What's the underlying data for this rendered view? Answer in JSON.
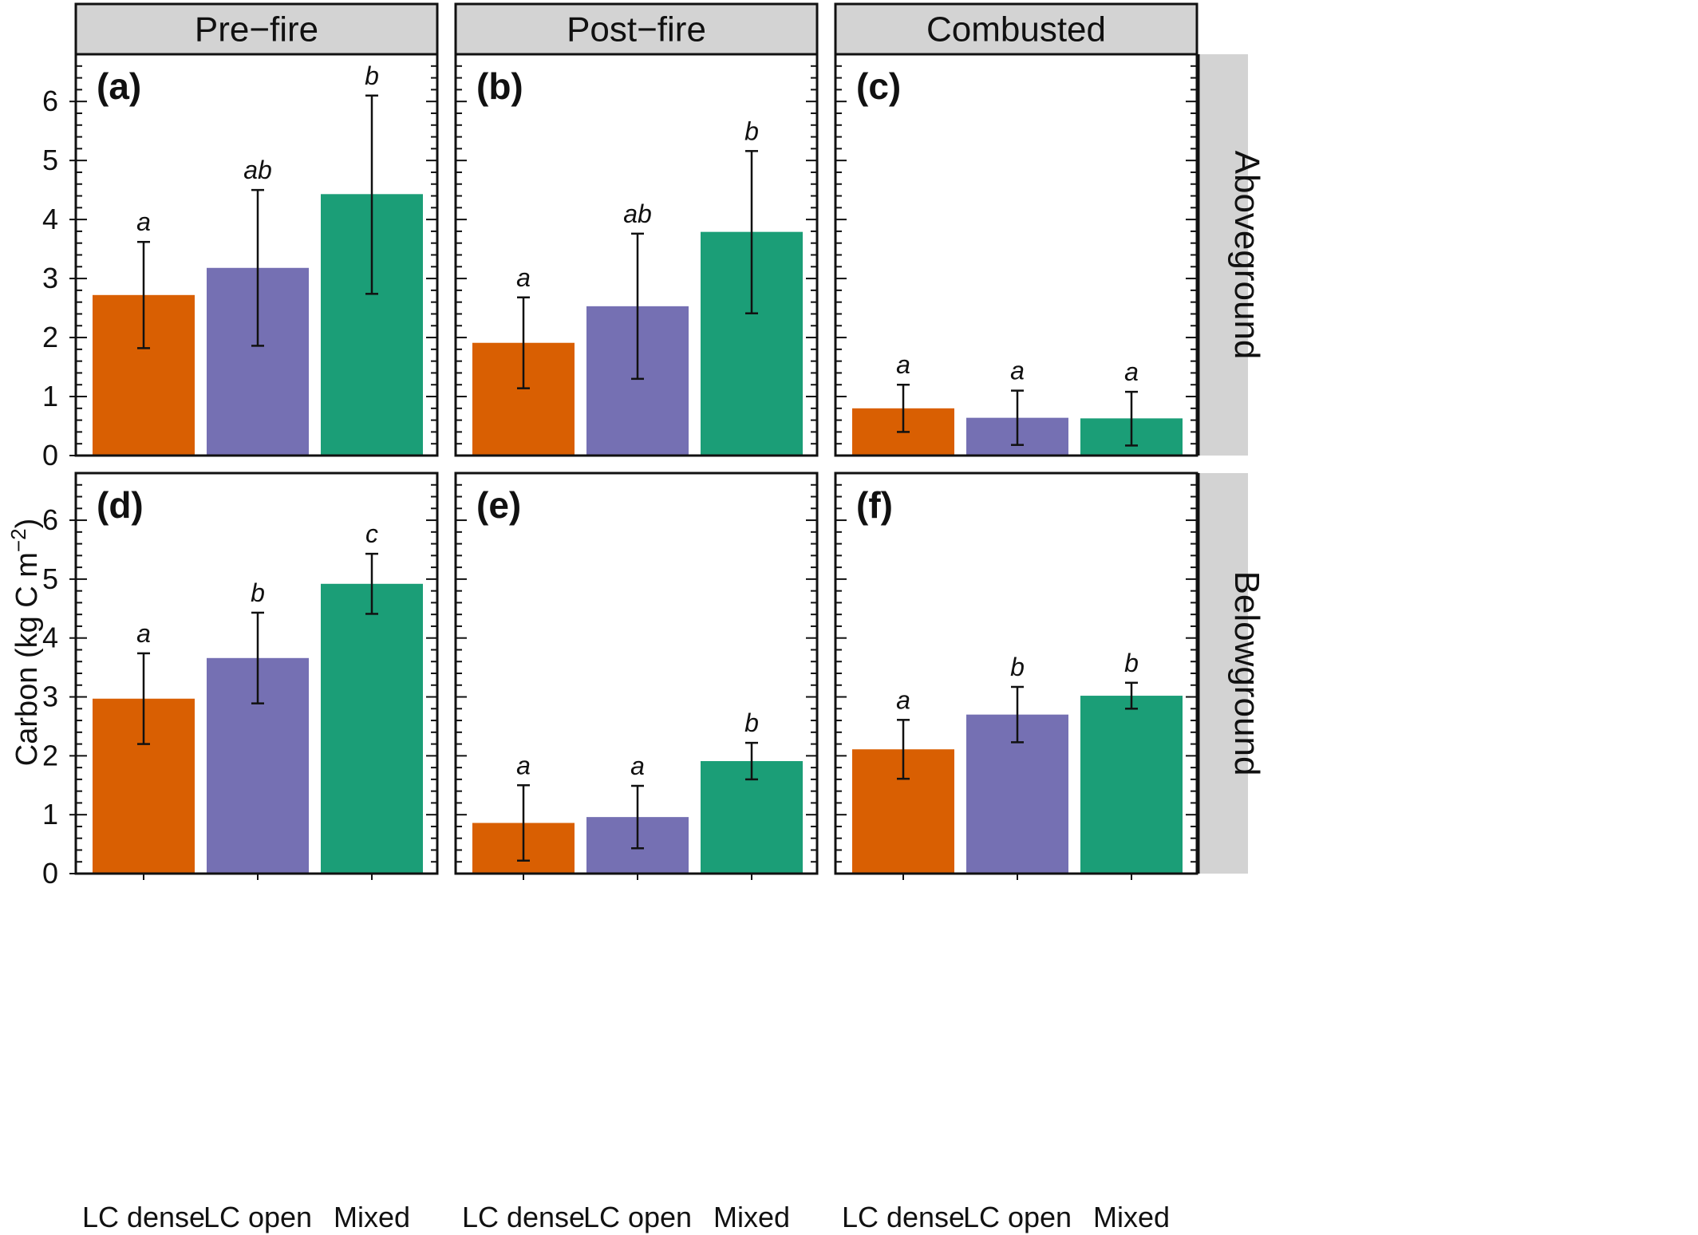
{
  "chart_data": {
    "type": "bar",
    "ylabel": "Carbon (kg C m",
    "ylabel_superscript": "−2",
    "ylabel_suffix": ")",
    "ylim": [
      0,
      6.8
    ],
    "yticks": [
      "0",
      "1",
      "2",
      "3",
      "4",
      "5",
      "6"
    ],
    "categories": [
      "LC dense",
      "LC open",
      "Mixed"
    ],
    "column_facets": [
      "Pre−fire",
      "Post−fire",
      "Combusted"
    ],
    "row_facets": [
      "Aboveground",
      "Belowground"
    ],
    "colors": {
      "LC dense": "#d95f02",
      "LC open": "#7570b3",
      "Mixed": "#1b9e77"
    },
    "panels": [
      {
        "tag": "(a)",
        "row": 0,
        "col": 0,
        "values": [
          2.72,
          3.18,
          4.43
        ],
        "error_low": [
          1.82,
          1.86,
          2.74
        ],
        "error_high": [
          3.62,
          4.5,
          6.1
        ],
        "letters": [
          "a",
          "ab",
          "b"
        ]
      },
      {
        "tag": "(b)",
        "row": 0,
        "col": 1,
        "values": [
          1.91,
          2.53,
          3.79
        ],
        "error_low": [
          1.14,
          1.3,
          2.41
        ],
        "error_high": [
          2.68,
          3.76,
          5.16
        ],
        "letters": [
          "a",
          "ab",
          "b"
        ]
      },
      {
        "tag": "(c)",
        "row": 0,
        "col": 2,
        "values": [
          0.8,
          0.64,
          0.63
        ],
        "error_low": [
          0.4,
          0.18,
          0.17
        ],
        "error_high": [
          1.2,
          1.1,
          1.08
        ],
        "letters": [
          "a",
          "a",
          "a"
        ]
      },
      {
        "tag": "(d)",
        "row": 1,
        "col": 0,
        "values": [
          2.97,
          3.66,
          4.92
        ],
        "error_low": [
          2.2,
          2.89,
          4.41
        ],
        "error_high": [
          3.74,
          4.43,
          5.43
        ],
        "letters": [
          "a",
          "b",
          "c"
        ]
      },
      {
        "tag": "(e)",
        "row": 1,
        "col": 1,
        "values": [
          0.86,
          0.96,
          1.91
        ],
        "error_low": [
          0.22,
          0.43,
          1.6
        ],
        "error_high": [
          1.5,
          1.49,
          2.22
        ],
        "letters": [
          "a",
          "a",
          "b"
        ]
      },
      {
        "tag": "(f)",
        "row": 1,
        "col": 2,
        "values": [
          2.11,
          2.7,
          3.02
        ],
        "error_low": [
          1.61,
          2.23,
          2.8
        ],
        "error_high": [
          2.61,
          3.17,
          3.24
        ],
        "letters": [
          "a",
          "b",
          "b"
        ]
      }
    ]
  }
}
